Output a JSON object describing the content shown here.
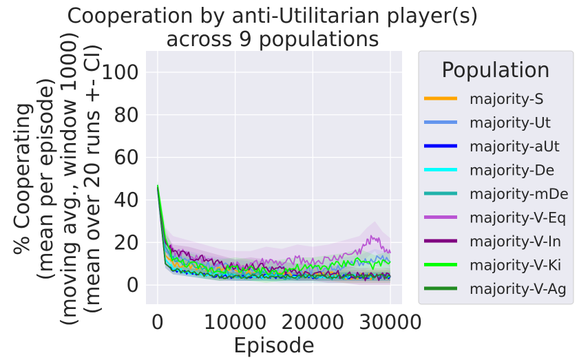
{
  "chart_data": {
    "type": "line",
    "title": [
      "Cooperation by anti-Utilitarian player(s)",
      "across 9 populations"
    ],
    "xlabel": "Episode",
    "ylabel": [
      "% Cooperating",
      "(mean per episode)",
      "(moving avg., window 1000)",
      "(mean over 20 runs +- CI)"
    ],
    "xlim": [
      -1500,
      31500
    ],
    "ylim": [
      -9,
      110
    ],
    "xticks": [
      0,
      10000,
      20000,
      30000
    ],
    "xtick_labels": [
      "0",
      "10000",
      "20000",
      "30000"
    ],
    "yticks": [
      0,
      20,
      40,
      60,
      80,
      100
    ],
    "ytick_labels": [
      "0",
      "20",
      "40",
      "60",
      "80",
      "100"
    ],
    "grid": true,
    "legend": {
      "title": "Population",
      "placement": "outside-right"
    },
    "series": [
      {
        "name": "majority-S",
        "color": "#FFA500",
        "ci": 3,
        "x": [
          0,
          1000,
          2000,
          4000,
          6000,
          8000,
          10000,
          12000,
          14000,
          16000,
          18000,
          20000,
          22000,
          24000,
          26000,
          28000,
          30000
        ],
        "y": [
          46,
          14,
          10,
          9,
          8,
          7,
          7,
          6,
          6,
          5,
          5,
          5,
          5,
          4,
          4,
          4,
          4
        ]
      },
      {
        "name": "majority-Ut",
        "color": "#6495ED",
        "ci": 4,
        "x": [
          0,
          1000,
          2000,
          4000,
          6000,
          8000,
          10000,
          12000,
          14000,
          16000,
          18000,
          20000,
          22000,
          24000,
          26000,
          28000,
          30000
        ],
        "y": [
          47,
          16,
          13,
          12,
          10,
          9,
          8,
          7,
          7,
          7,
          6,
          7,
          8,
          9,
          10,
          13,
          11
        ]
      },
      {
        "name": "majority-aUt",
        "color": "#0000FF",
        "ci": 2,
        "x": [
          0,
          1000,
          2000,
          4000,
          6000,
          8000,
          10000,
          12000,
          14000,
          16000,
          18000,
          20000,
          22000,
          24000,
          26000,
          28000,
          30000
        ],
        "y": [
          45,
          10,
          7,
          6,
          5,
          4,
          4,
          4,
          4,
          4,
          4,
          4,
          4,
          4,
          4,
          4,
          4
        ]
      },
      {
        "name": "majority-De",
        "color": "#00FFFF",
        "ci": 2,
        "x": [
          0,
          1000,
          2000,
          4000,
          6000,
          8000,
          10000,
          12000,
          14000,
          16000,
          18000,
          20000,
          22000,
          24000,
          26000,
          28000,
          30000
        ],
        "y": [
          46,
          12,
          8,
          6,
          5,
          5,
          4,
          4,
          4,
          4,
          4,
          4,
          4,
          4,
          4,
          4,
          4
        ]
      },
      {
        "name": "majority-mDe",
        "color": "#20B2AA",
        "ci": 3,
        "x": [
          0,
          1000,
          2000,
          4000,
          6000,
          8000,
          10000,
          12000,
          14000,
          16000,
          18000,
          20000,
          22000,
          24000,
          26000,
          28000,
          30000
        ],
        "y": [
          46,
          18,
          12,
          10,
          8,
          6,
          5,
          5,
          5,
          4,
          4,
          4,
          4,
          4,
          4,
          4,
          4
        ]
      },
      {
        "name": "majority-V-Eq",
        "color": "#BA55D3",
        "ci": 7,
        "x": [
          0,
          1000,
          2000,
          4000,
          6000,
          8000,
          10000,
          12000,
          14000,
          16000,
          18000,
          20000,
          22000,
          24000,
          26000,
          27000,
          28000,
          29000,
          30000
        ],
        "y": [
          46,
          20,
          16,
          14,
          12,
          10,
          9,
          9,
          11,
          10,
          12,
          11,
          12,
          14,
          16,
          20,
          23,
          18,
          15
        ]
      },
      {
        "name": "majority-V-In",
        "color": "#800080",
        "ci": 4,
        "x": [
          0,
          1000,
          2000,
          4000,
          6000,
          8000,
          10000,
          12000,
          14000,
          16000,
          18000,
          20000,
          22000,
          24000,
          26000,
          28000,
          30000
        ],
        "y": [
          46,
          20,
          15,
          14,
          12,
          10,
          8,
          9,
          8,
          7,
          6,
          6,
          5,
          5,
          4,
          4,
          4
        ]
      },
      {
        "name": "majority-V-Ki",
        "color": "#00FF00",
        "ci": 5,
        "x": [
          0,
          1000,
          2000,
          4000,
          6000,
          8000,
          10000,
          12000,
          14000,
          16000,
          18000,
          20000,
          22000,
          24000,
          26000,
          28000,
          30000
        ],
        "y": [
          47,
          22,
          12,
          10,
          8,
          7,
          8,
          7,
          6,
          7,
          8,
          8,
          9,
          10,
          12,
          9,
          11
        ]
      },
      {
        "name": "majority-V-Ag",
        "color": "#228B22",
        "ci": 2,
        "x": [
          0,
          1000,
          2000,
          4000,
          6000,
          8000,
          10000,
          12000,
          14000,
          16000,
          18000,
          20000,
          22000,
          24000,
          26000,
          28000,
          30000
        ],
        "y": [
          46,
          10,
          7,
          6,
          5,
          4,
          4,
          4,
          4,
          4,
          4,
          4,
          4,
          4,
          4,
          4,
          4
        ]
      }
    ]
  }
}
